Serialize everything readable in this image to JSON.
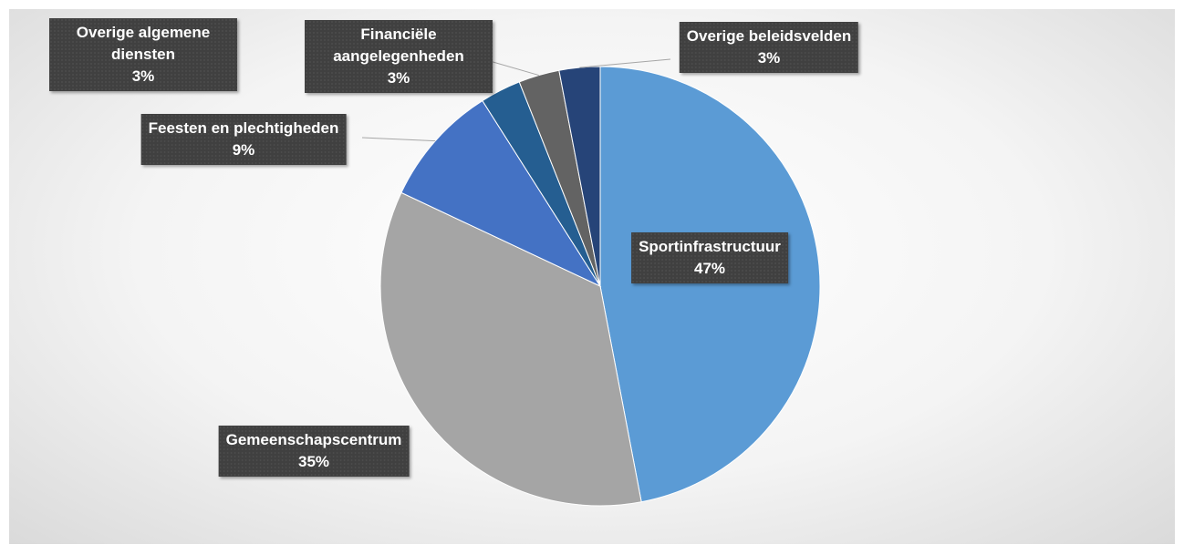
{
  "chart_data": {
    "type": "pie",
    "categories": [
      "Sportinfrastructuur",
      "Gemeenschapscentrum",
      "Feesten en plechtigheden",
      "Overige algemene diensten",
      "Financiële aangelegenheden",
      "Overige beleidsvelden"
    ],
    "values": [
      47,
      35,
      9,
      3,
      3,
      3
    ],
    "value_labels": [
      "47%",
      "35%",
      "9%",
      "3%",
      "3%",
      "3%"
    ],
    "colors": [
      "#5b9bd5",
      "#a5a5a5",
      "#4472c4",
      "#255e91",
      "#636363",
      "#264478"
    ]
  }
}
